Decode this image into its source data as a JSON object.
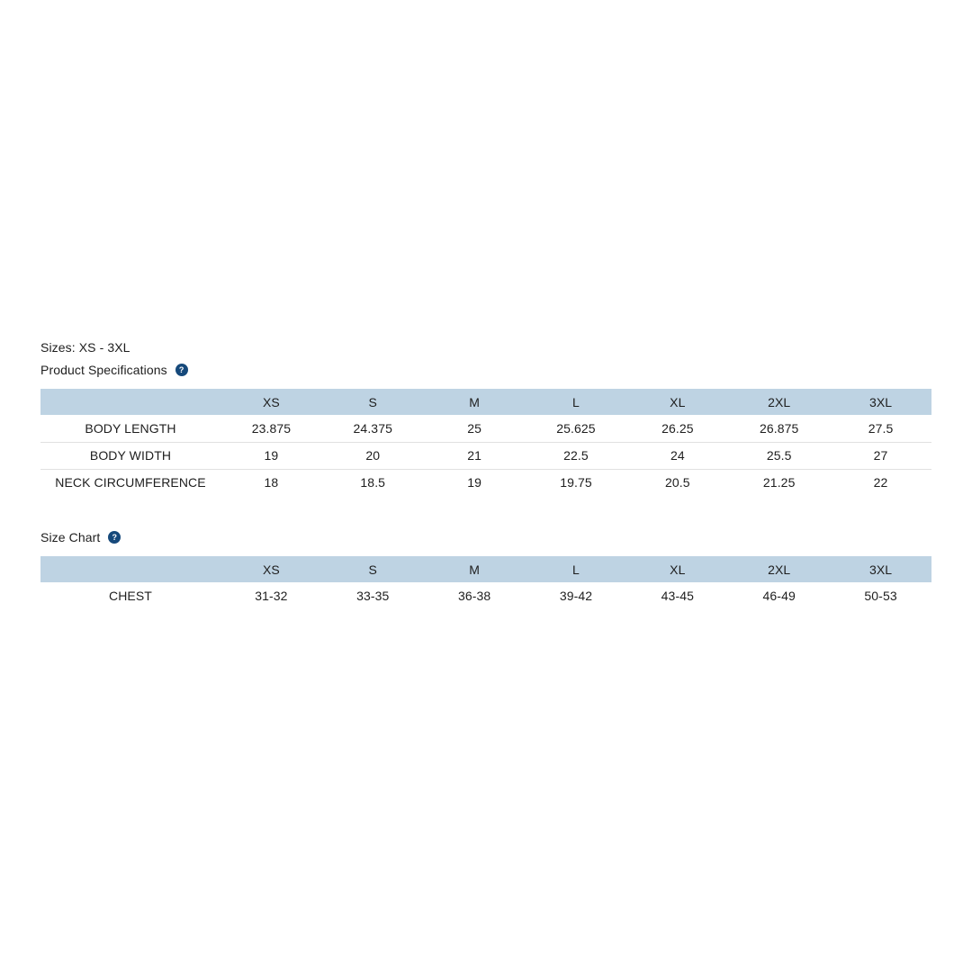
{
  "colors": {
    "page_background": "#ffffff",
    "table_header_background": "#bed3e3",
    "text": "#1e1e1e",
    "row_divider": "#e0e0e0",
    "help_icon_background": "#16497b",
    "help_icon_glyph_color": "#ffffff"
  },
  "sizes_label": "Sizes: XS - 3XL",
  "help_glyph": "?",
  "product_specifications": {
    "title": "Product Specifications",
    "columns": [
      "",
      "XS",
      "S",
      "M",
      "L",
      "XL",
      "2XL",
      "3XL"
    ],
    "rows": [
      {
        "label": "BODY LENGTH",
        "values": [
          "23.875",
          "24.375",
          "25",
          "25.625",
          "26.25",
          "26.875",
          "27.5"
        ]
      },
      {
        "label": "BODY WIDTH",
        "values": [
          "19",
          "20",
          "21",
          "22.5",
          "24",
          "25.5",
          "27"
        ]
      },
      {
        "label": "NECK CIRCUMFERENCE",
        "values": [
          "18",
          "18.5",
          "19",
          "19.75",
          "20.5",
          "21.25",
          "22"
        ]
      }
    ]
  },
  "size_chart": {
    "title": "Size Chart",
    "columns": [
      "",
      "XS",
      "S",
      "M",
      "L",
      "XL",
      "2XL",
      "3XL"
    ],
    "rows": [
      {
        "label": "CHEST",
        "values": [
          "31-32",
          "33-35",
          "36-38",
          "39-42",
          "43-45",
          "46-49",
          "50-53"
        ]
      }
    ]
  }
}
